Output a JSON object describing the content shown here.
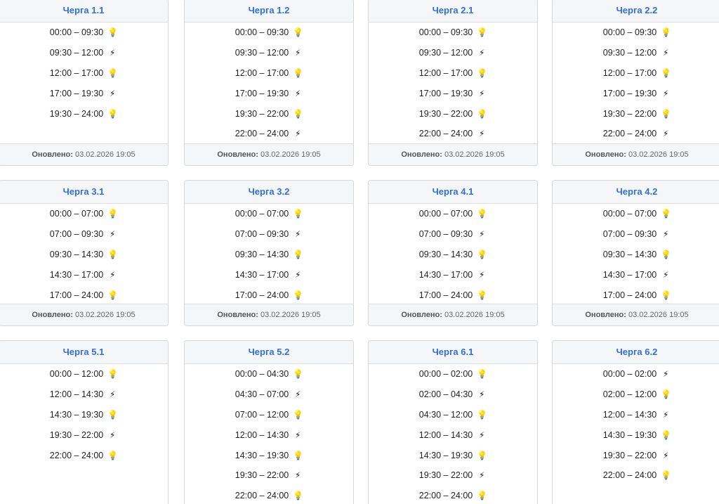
{
  "footer_label": "Оновлено:",
  "icons": {
    "on": "lightbulb-icon",
    "off": "power-off-icon"
  },
  "colors": {
    "title": "#2f6fd8",
    "bulb": "#f1c21b",
    "off": "#1a1a1a"
  },
  "queues": [
    {
      "title": "Черга 1.1",
      "updated": "03.02.2026 19:05",
      "slots": [
        {
          "time": "00:00 – 09:30",
          "power": "on"
        },
        {
          "time": "09:30 – 12:00",
          "power": "off"
        },
        {
          "time": "12:00 – 17:00",
          "power": "on"
        },
        {
          "time": "17:00 – 19:30",
          "power": "off"
        },
        {
          "time": "19:30 – 24:00",
          "power": "on"
        }
      ]
    },
    {
      "title": "Черга 1.2",
      "updated": "03.02.2026 19:05",
      "slots": [
        {
          "time": "00:00 – 09:30",
          "power": "on"
        },
        {
          "time": "09:30 – 12:00",
          "power": "off"
        },
        {
          "time": "12:00 – 17:00",
          "power": "on"
        },
        {
          "time": "17:00 – 19:30",
          "power": "off"
        },
        {
          "time": "19:30 – 22:00",
          "power": "on"
        },
        {
          "time": "22:00 – 24:00",
          "power": "off"
        }
      ]
    },
    {
      "title": "Черга 2.1",
      "updated": "03.02.2026 19:05",
      "slots": [
        {
          "time": "00:00 – 09:30",
          "power": "on"
        },
        {
          "time": "09:30 – 12:00",
          "power": "off"
        },
        {
          "time": "12:00 – 17:00",
          "power": "on"
        },
        {
          "time": "17:00 – 19:30",
          "power": "off"
        },
        {
          "time": "19:30 – 22:00",
          "power": "on"
        },
        {
          "time": "22:00 – 24:00",
          "power": "off"
        }
      ]
    },
    {
      "title": "Черга 2.2",
      "updated": "03.02.2026 19:05",
      "slots": [
        {
          "time": "00:00 – 09:30",
          "power": "on"
        },
        {
          "time": "09:30 – 12:00",
          "power": "off"
        },
        {
          "time": "12:00 – 17:00",
          "power": "on"
        },
        {
          "time": "17:00 – 19:30",
          "power": "off"
        },
        {
          "time": "19:30 – 22:00",
          "power": "on"
        },
        {
          "time": "22:00 – 24:00",
          "power": "off"
        }
      ]
    },
    {
      "title": "Черга 3.1",
      "updated": "03.02.2026 19:05",
      "slots": [
        {
          "time": "00:00 – 07:00",
          "power": "on"
        },
        {
          "time": "07:00 – 09:30",
          "power": "off"
        },
        {
          "time": "09:30 – 14:30",
          "power": "on"
        },
        {
          "time": "14:30 – 17:00",
          "power": "off"
        },
        {
          "time": "17:00 – 24:00",
          "power": "on"
        }
      ]
    },
    {
      "title": "Черга 3.2",
      "updated": "03.02.2026 19:05",
      "slots": [
        {
          "time": "00:00 – 07:00",
          "power": "on"
        },
        {
          "time": "07:00 – 09:30",
          "power": "off"
        },
        {
          "time": "09:30 – 14:30",
          "power": "on"
        },
        {
          "time": "14:30 – 17:00",
          "power": "off"
        },
        {
          "time": "17:00 – 24:00",
          "power": "on"
        }
      ]
    },
    {
      "title": "Черга 4.1",
      "updated": "03.02.2026 19:05",
      "slots": [
        {
          "time": "00:00 – 07:00",
          "power": "on"
        },
        {
          "time": "07:00 – 09:30",
          "power": "off"
        },
        {
          "time": "09:30 – 14:30",
          "power": "on"
        },
        {
          "time": "14:30 – 17:00",
          "power": "off"
        },
        {
          "time": "17:00 – 24:00",
          "power": "on"
        }
      ]
    },
    {
      "title": "Черга 4.2",
      "updated": "03.02.2026 19:05",
      "slots": [
        {
          "time": "00:00 – 07:00",
          "power": "on"
        },
        {
          "time": "07:00 – 09:30",
          "power": "off"
        },
        {
          "time": "09:30 – 14:30",
          "power": "on"
        },
        {
          "time": "14:30 – 17:00",
          "power": "off"
        },
        {
          "time": "17:00 – 24:00",
          "power": "on"
        }
      ]
    },
    {
      "title": "Черга 5.1",
      "updated": "",
      "slots": [
        {
          "time": "00:00 – 12:00",
          "power": "on"
        },
        {
          "time": "12:00 – 14:30",
          "power": "off"
        },
        {
          "time": "14:30 – 19:30",
          "power": "on"
        },
        {
          "time": "19:30 – 22:00",
          "power": "off"
        },
        {
          "time": "22:00 – 24:00",
          "power": "on"
        }
      ]
    },
    {
      "title": "Черга 5.2",
      "updated": "",
      "slots": [
        {
          "time": "00:00 – 04:30",
          "power": "on"
        },
        {
          "time": "04:30 – 07:00",
          "power": "off"
        },
        {
          "time": "07:00 – 12:00",
          "power": "on"
        },
        {
          "time": "12:00 – 14:30",
          "power": "off"
        },
        {
          "time": "14:30 – 19:30",
          "power": "on"
        },
        {
          "time": "19:30 – 22:00",
          "power": "off"
        },
        {
          "time": "22:00 – 24:00",
          "power": "on"
        }
      ]
    },
    {
      "title": "Черга 6.1",
      "updated": "",
      "slots": [
        {
          "time": "00:00 – 02:00",
          "power": "on"
        },
        {
          "time": "02:00 – 04:30",
          "power": "off"
        },
        {
          "time": "04:30 – 12:00",
          "power": "on"
        },
        {
          "time": "12:00 – 14:30",
          "power": "off"
        },
        {
          "time": "14:30 – 19:30",
          "power": "on"
        },
        {
          "time": "19:30 – 22:00",
          "power": "off"
        },
        {
          "time": "22:00 – 24:00",
          "power": "on"
        }
      ]
    },
    {
      "title": "Черга 6.2",
      "updated": "",
      "slots": [
        {
          "time": "00:00 – 02:00",
          "power": "off"
        },
        {
          "time": "02:00 – 12:00",
          "power": "on"
        },
        {
          "time": "12:00 – 14:30",
          "power": "off"
        },
        {
          "time": "14:30 – 19:30",
          "power": "on"
        },
        {
          "time": "19:30 – 22:00",
          "power": "off"
        },
        {
          "time": "22:00 – 24:00",
          "power": "on"
        }
      ]
    }
  ]
}
